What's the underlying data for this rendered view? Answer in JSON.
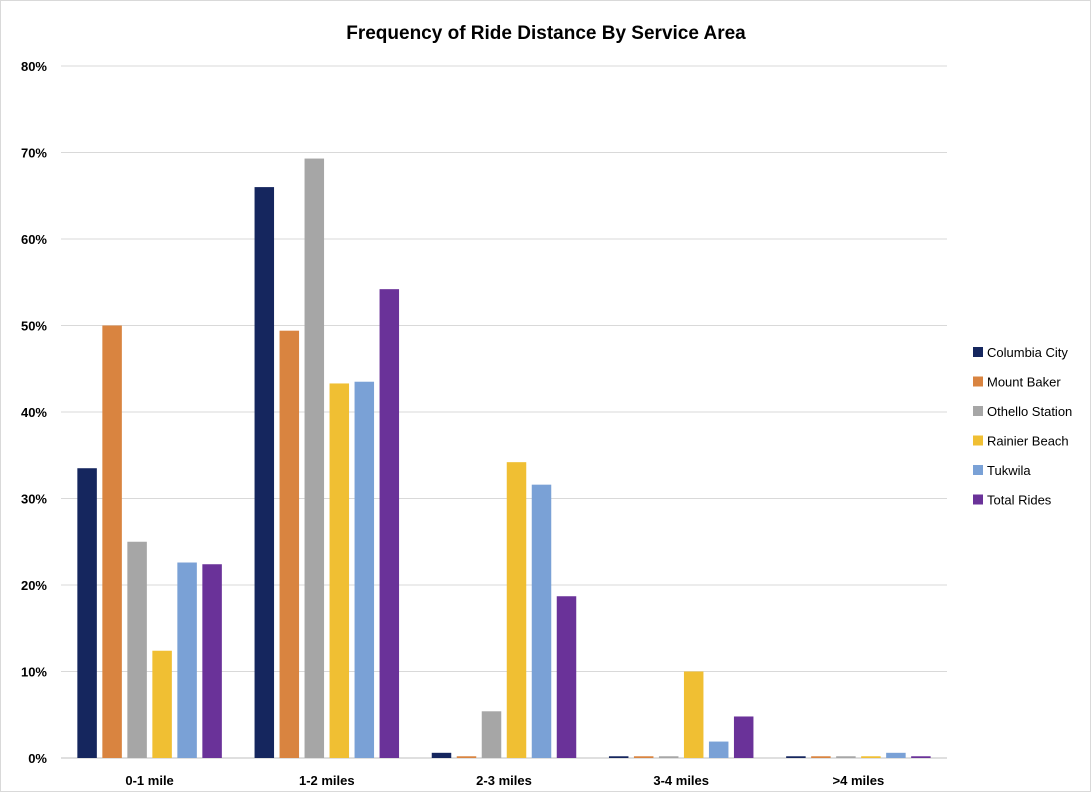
{
  "chart_data": {
    "type": "bar",
    "title": "Frequency of Ride Distance By Service Area",
    "xlabel": "",
    "ylabel": "",
    "categories": [
      "0-1 mile",
      "1-2 miles",
      "2-3 miles",
      "3-4 miles",
      ">4 miles"
    ],
    "ylim": [
      0,
      80
    ],
    "yticks": [
      "0%",
      "10%",
      "20%",
      "30%",
      "40%",
      "50%",
      "60%",
      "70%",
      "80%"
    ],
    "grid": true,
    "legend_position": "right",
    "series": [
      {
        "name": "Columbia City",
        "color": "#15265e",
        "values": [
          33.5,
          66.0,
          0.6,
          0.2,
          0.2
        ]
      },
      {
        "name": "Mount Baker",
        "color": "#d98440",
        "values": [
          50.0,
          49.4,
          0.2,
          0.2,
          0.2
        ]
      },
      {
        "name": "Othello Station",
        "color": "#a6a6a6",
        "values": [
          25.0,
          69.3,
          5.4,
          0.2,
          0.2
        ]
      },
      {
        "name": "Rainier Beach",
        "color": "#f0bf33",
        "values": [
          12.4,
          43.3,
          34.2,
          10.0,
          0.2
        ]
      },
      {
        "name": "Tukwila",
        "color": "#7aa1d6",
        "values": [
          22.6,
          43.5,
          31.6,
          1.9,
          0.6
        ]
      },
      {
        "name": "Total Rides",
        "color": "#6a3299",
        "values": [
          22.4,
          54.2,
          18.7,
          4.8,
          0.2
        ]
      }
    ]
  }
}
